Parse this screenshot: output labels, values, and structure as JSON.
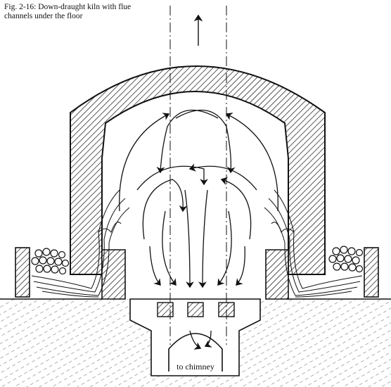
{
  "caption": {
    "line1": "Fig. 2-16: Down-draught kiln with flue",
    "line2": "channels under the floor"
  },
  "labels": {
    "chimney": "to chimney"
  },
  "colors": {
    "ink": "#111111",
    "paper": "#ffffff"
  }
}
